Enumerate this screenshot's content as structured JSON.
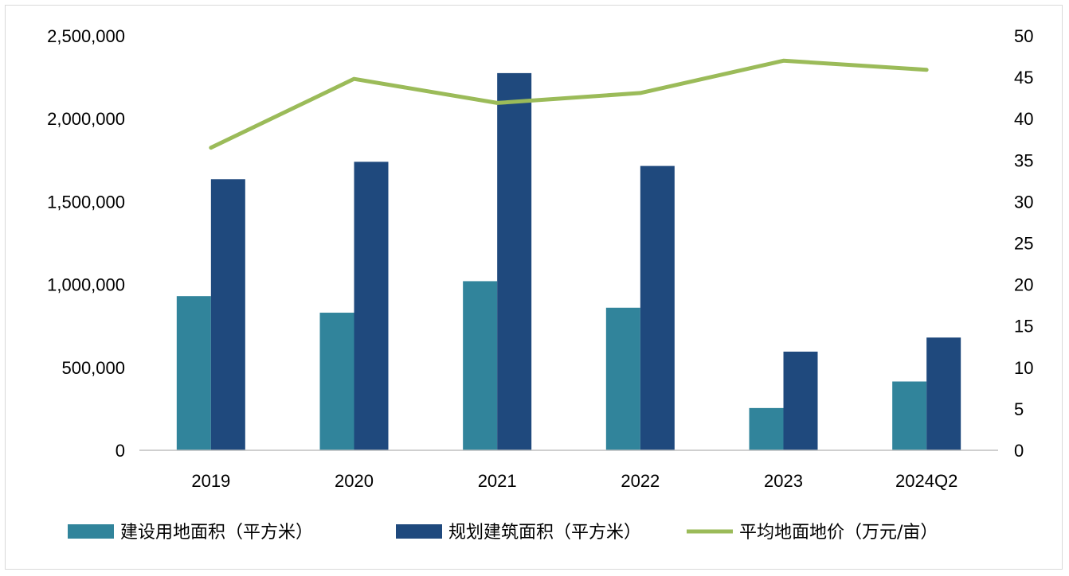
{
  "chart_data": {
    "type": "bar",
    "title": "",
    "categories": [
      "2019",
      "2020",
      "2021",
      "2022",
      "2023",
      "2024Q2"
    ],
    "series": [
      {
        "name": "建设用地面积（平方米）",
        "type": "bar",
        "axis": "left",
        "color": "#31849b",
        "values": [
          930000,
          830000,
          1020000,
          860000,
          255000,
          415000
        ]
      },
      {
        "name": "规划建筑面积（平方米）",
        "type": "bar",
        "axis": "left",
        "color": "#1f497d",
        "values": [
          1635000,
          1740000,
          2275000,
          1715000,
          595000,
          680000
        ]
      },
      {
        "name": "平均地面地价（万元/亩）",
        "type": "line",
        "axis": "right",
        "color": "#9bbb59",
        "values": [
          36.5,
          44.8,
          41.9,
          43.1,
          47.0,
          45.9
        ]
      }
    ],
    "y_left": {
      "range": [
        0,
        2500000
      ],
      "ticks": [
        "0",
        "500,000",
        "1,000,000",
        "1,500,000",
        "2,000,000",
        "2,500,000"
      ]
    },
    "y_right": {
      "range": [
        0,
        50
      ],
      "ticks": [
        "0",
        "5",
        "10",
        "15",
        "20",
        "25",
        "30",
        "35",
        "40",
        "45",
        "50"
      ]
    },
    "grid": false,
    "legend_position": "bottom"
  }
}
